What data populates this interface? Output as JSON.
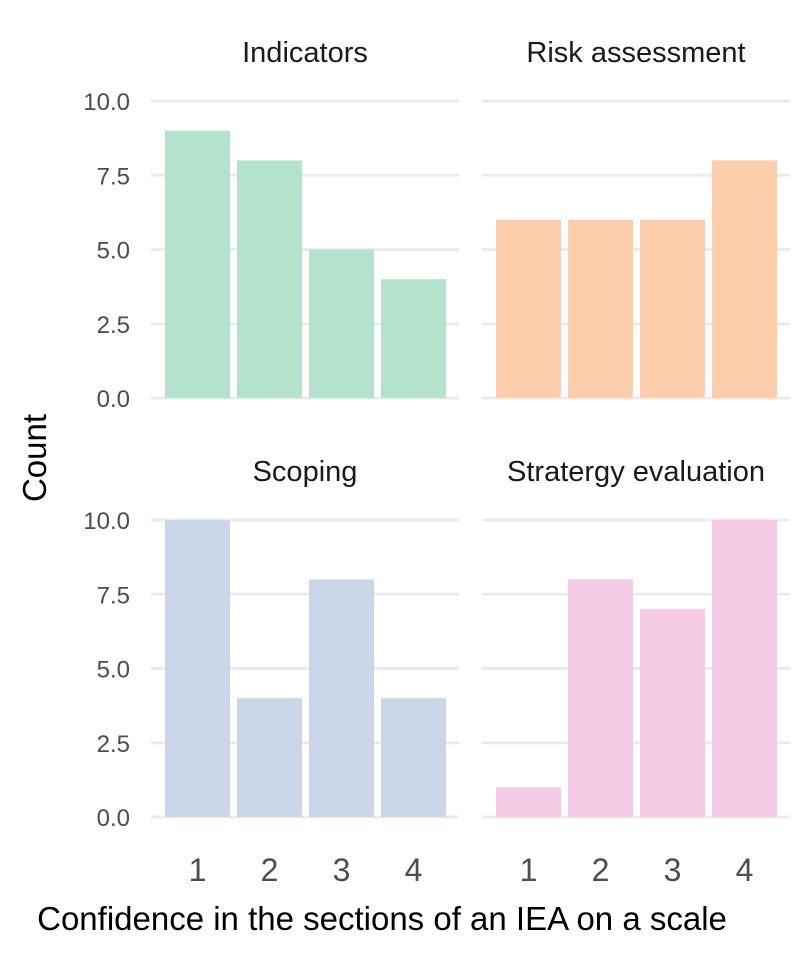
{
  "chart_data": {
    "type": "bar",
    "xlabel": "Confidence in the sections of an IEA on a scale",
    "ylabel": "Count",
    "ylim": [
      0,
      10
    ],
    "yticks": [
      "0.0",
      "2.5",
      "5.0",
      "7.5",
      "10.0"
    ],
    "categories": [
      "1",
      "2",
      "3",
      "4"
    ],
    "grid": true,
    "legend": "none",
    "panels": [
      {
        "title": "Indicators",
        "color": "#b3e2cd",
        "values": [
          9,
          8,
          5,
          4
        ]
      },
      {
        "title": "Risk assessment",
        "color": "#fdcdac",
        "values": [
          6,
          6,
          6,
          8
        ]
      },
      {
        "title": "Scoping",
        "color": "#cbd5e8",
        "values": [
          10,
          4,
          8,
          4
        ]
      },
      {
        "title": "Stratergy evaluation",
        "color": "#f4cae4",
        "values": [
          1,
          8,
          7,
          10
        ]
      }
    ]
  }
}
